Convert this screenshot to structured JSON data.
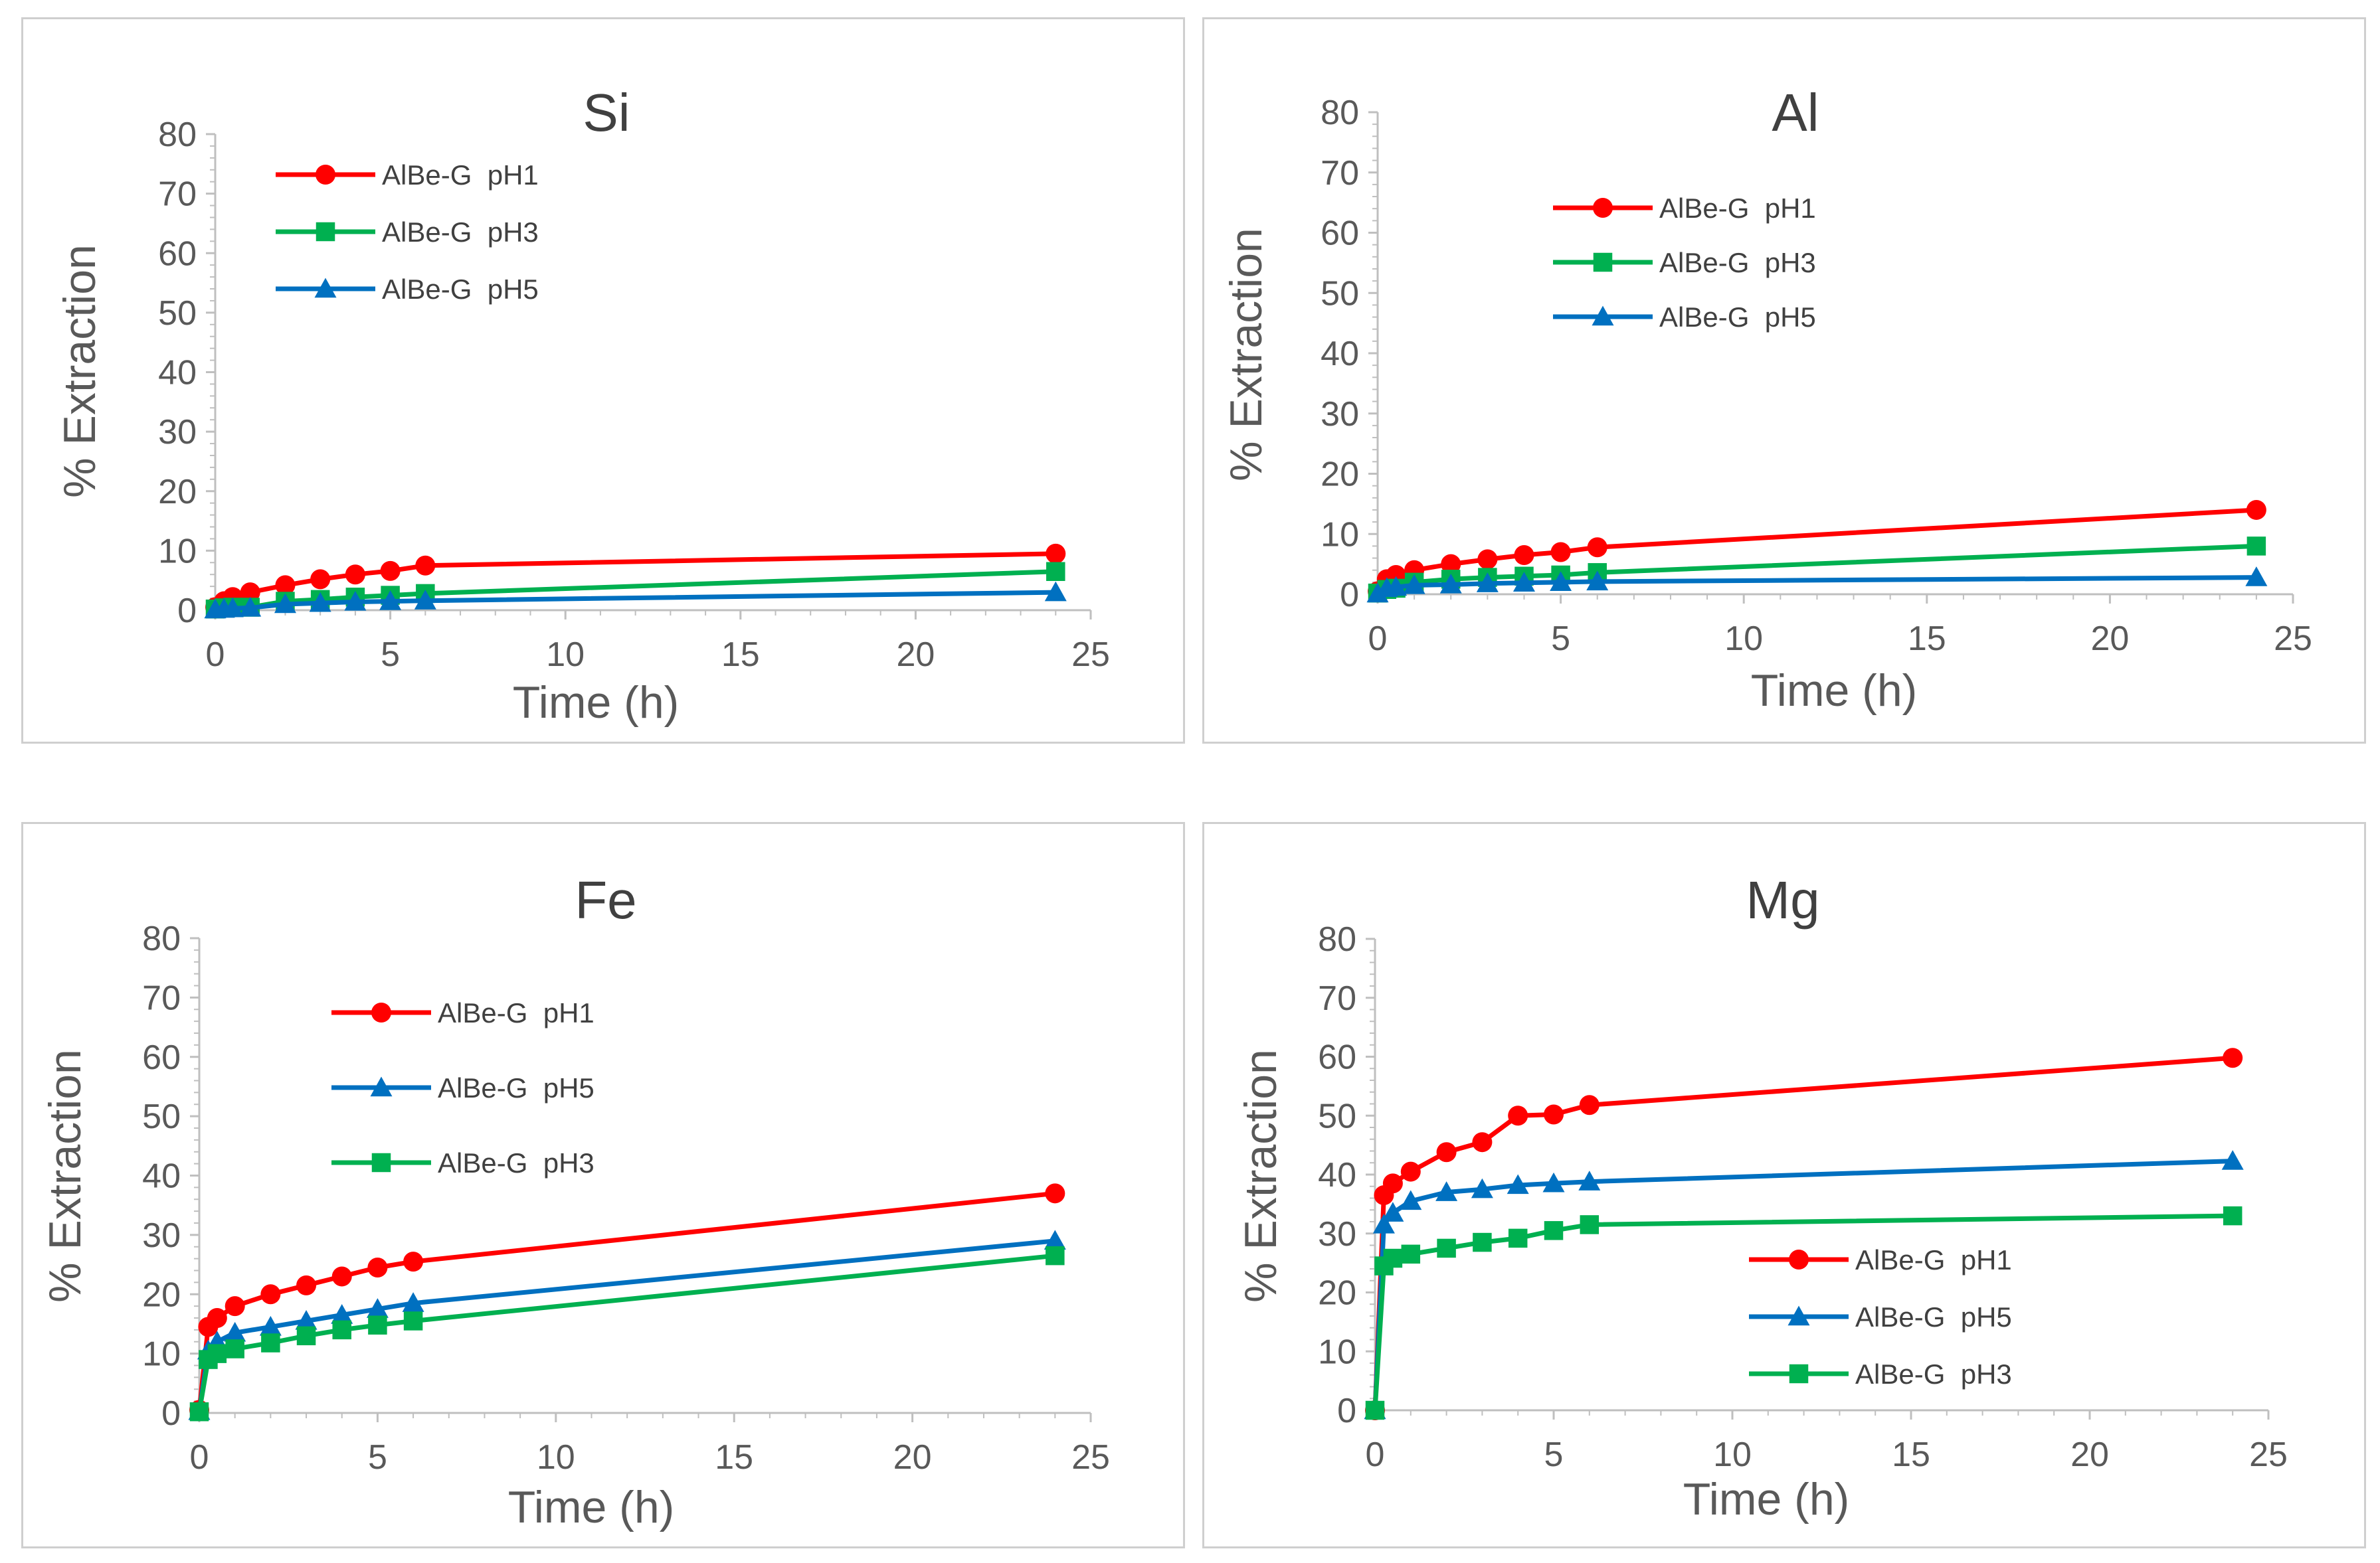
{
  "chart_data": [
    {
      "type": "line",
      "title": "Si",
      "xlabel": "Time (h)",
      "ylabel": "% Extraction",
      "xlim": [
        0,
        25
      ],
      "ylim": [
        0,
        80
      ],
      "xticks": [
        0,
        5,
        10,
        15,
        20,
        25
      ],
      "yticks": [
        0,
        10,
        20,
        30,
        40,
        50,
        60,
        70,
        80
      ],
      "legend_position": "top-left",
      "series": [
        {
          "name": "AlBe-G  pH1",
          "color": "#ff0000",
          "marker": "circle",
          "x": [
            0,
            0.25,
            0.5,
            1,
            2,
            3,
            4,
            5,
            6,
            24
          ],
          "values": [
            0.5,
            1.5,
            2.2,
            3.0,
            4.2,
            5.2,
            6.0,
            6.6,
            7.5,
            9.5
          ]
        },
        {
          "name": "AlBe-G  pH3",
          "color": "#00b050",
          "marker": "square",
          "x": [
            0,
            0.25,
            0.5,
            1,
            2,
            3,
            4,
            5,
            6,
            24
          ],
          "values": [
            0.2,
            0.4,
            0.5,
            0.5,
            1.5,
            1.8,
            2.2,
            2.5,
            2.8,
            6.5
          ]
        },
        {
          "name": "AlBe-G  pH5",
          "color": "#0070c0",
          "marker": "triangle",
          "x": [
            0,
            0.25,
            0.5,
            1,
            2,
            3,
            4,
            5,
            6,
            24
          ],
          "values": [
            0.1,
            0.2,
            0.3,
            0.4,
            1.0,
            1.2,
            1.4,
            1.5,
            1.6,
            3.0
          ]
        }
      ]
    },
    {
      "type": "line",
      "title": "Al",
      "xlabel": "Time (h)",
      "ylabel": "% Extraction",
      "xlim": [
        0,
        25
      ],
      "ylim": [
        0,
        80
      ],
      "xticks": [
        0,
        5,
        10,
        15,
        20,
        25
      ],
      "yticks": [
        0,
        10,
        20,
        30,
        40,
        50,
        60,
        70,
        80
      ],
      "legend_position": "top-center",
      "series": [
        {
          "name": "AlBe-G  pH1",
          "color": "#ff0000",
          "marker": "circle",
          "x": [
            0,
            0.25,
            0.5,
            1,
            2,
            3,
            4,
            5,
            6,
            24
          ],
          "values": [
            0.5,
            2.5,
            3.2,
            4.0,
            5.0,
            5.8,
            6.5,
            7.0,
            7.8,
            14.0
          ]
        },
        {
          "name": "AlBe-G  pH3",
          "color": "#00b050",
          "marker": "square",
          "x": [
            0,
            0.25,
            0.5,
            1,
            2,
            3,
            4,
            5,
            6,
            24
          ],
          "values": [
            0.2,
            0.8,
            1.0,
            2.0,
            2.5,
            2.8,
            3.0,
            3.2,
            3.6,
            8.0
          ]
        },
        {
          "name": "AlBe-G  pH5",
          "color": "#0070c0",
          "marker": "triangle",
          "x": [
            0,
            0.25,
            0.5,
            1,
            2,
            3,
            4,
            5,
            6,
            24
          ],
          "values": [
            0.1,
            1.0,
            1.2,
            1.5,
            1.6,
            1.8,
            1.9,
            2.0,
            2.1,
            2.8
          ]
        }
      ]
    },
    {
      "type": "line",
      "title": "Fe",
      "xlabel": "Time (h)",
      "ylabel": "% Extraction",
      "xlim": [
        0,
        25
      ],
      "ylim": [
        0,
        80
      ],
      "xticks": [
        0,
        5,
        10,
        15,
        20,
        25
      ],
      "yticks": [
        0,
        10,
        20,
        30,
        40,
        50,
        60,
        70,
        80
      ],
      "legend_position": "top-center",
      "series": [
        {
          "name": "AlBe-G  pH1",
          "color": "#ff0000",
          "marker": "circle",
          "x": [
            0,
            0.25,
            0.5,
            1,
            2,
            3,
            4,
            5,
            6,
            24
          ],
          "values": [
            0.5,
            14.5,
            16.0,
            18.0,
            20.0,
            21.5,
            23.0,
            24.5,
            25.5,
            37.0
          ]
        },
        {
          "name": "AlBe-G  pH5",
          "color": "#0070c0",
          "marker": "triangle",
          "x": [
            0,
            0.25,
            0.5,
            1,
            2,
            3,
            4,
            5,
            6,
            24
          ],
          "values": [
            0.3,
            10.5,
            12.0,
            13.5,
            14.5,
            15.5,
            16.5,
            17.5,
            18.5,
            29.0
          ]
        },
        {
          "name": "AlBe-G  pH3",
          "color": "#00b050",
          "marker": "square",
          "x": [
            0,
            0.25,
            0.5,
            1,
            2,
            3,
            4,
            5,
            6,
            24
          ],
          "values": [
            0.2,
            9.0,
            10.0,
            10.8,
            11.8,
            13.0,
            14.0,
            14.8,
            15.5,
            26.5
          ]
        }
      ]
    },
    {
      "type": "line",
      "title": "Mg",
      "xlabel": "Time (h)",
      "ylabel": "% Extraction",
      "xlim": [
        0,
        25
      ],
      "ylim": [
        0,
        80
      ],
      "xticks": [
        0,
        5,
        10,
        15,
        20,
        25
      ],
      "yticks": [
        0,
        10,
        20,
        30,
        40,
        50,
        60,
        70,
        80
      ],
      "legend_position": "bottom-right",
      "series": [
        {
          "name": "AlBe-G  pH1",
          "color": "#ff0000",
          "marker": "circle",
          "x": [
            0,
            0.25,
            0.5,
            1,
            2,
            3,
            4,
            5,
            6,
            24
          ],
          "values": [
            0,
            36.5,
            38.5,
            40.5,
            43.8,
            45.5,
            50.0,
            50.2,
            51.8,
            59.8
          ]
        },
        {
          "name": "AlBe-G  pH5",
          "color": "#0070c0",
          "marker": "triangle",
          "x": [
            0,
            0.25,
            0.5,
            1,
            2,
            3,
            4,
            5,
            6,
            24
          ],
          "values": [
            0,
            31.5,
            33.5,
            35.5,
            37.0,
            37.5,
            38.2,
            38.5,
            38.8,
            42.3
          ]
        },
        {
          "name": "AlBe-G  pH3",
          "color": "#00b050",
          "marker": "square",
          "x": [
            0,
            0.25,
            0.5,
            1,
            2,
            3,
            4,
            5,
            6,
            24
          ],
          "values": [
            0,
            24.5,
            25.8,
            26.5,
            27.5,
            28.5,
            29.2,
            30.5,
            31.5,
            33.0
          ]
        }
      ]
    }
  ]
}
